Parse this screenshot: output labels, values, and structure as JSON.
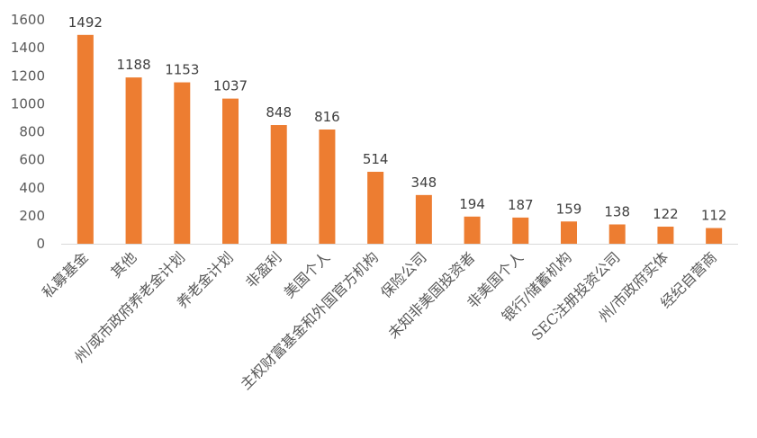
{
  "chart_data": {
    "type": "bar",
    "title": "",
    "xlabel": "",
    "ylabel": "",
    "ylim": [
      0,
      1600
    ],
    "y_ticks": [
      0,
      200,
      400,
      600,
      800,
      1000,
      1200,
      1400,
      1600
    ],
    "grid": false,
    "legend": "none",
    "bar_color": "#ED7D31",
    "categories": [
      "私募基金",
      "其他",
      "州/或市政府养老金计划",
      "养老金计划",
      "非盈利",
      "美国个人",
      "主权财富基金和外国官方机构",
      "保险公司",
      "未知非美国投资者",
      "非美国个人",
      "银行/储蓄机构",
      "SEC注册投资公司",
      "州/市政府实体",
      "经纪自营商"
    ],
    "values": [
      1492,
      1188,
      1153,
      1037,
      848,
      816,
      514,
      348,
      194,
      187,
      159,
      138,
      122,
      112
    ]
  }
}
